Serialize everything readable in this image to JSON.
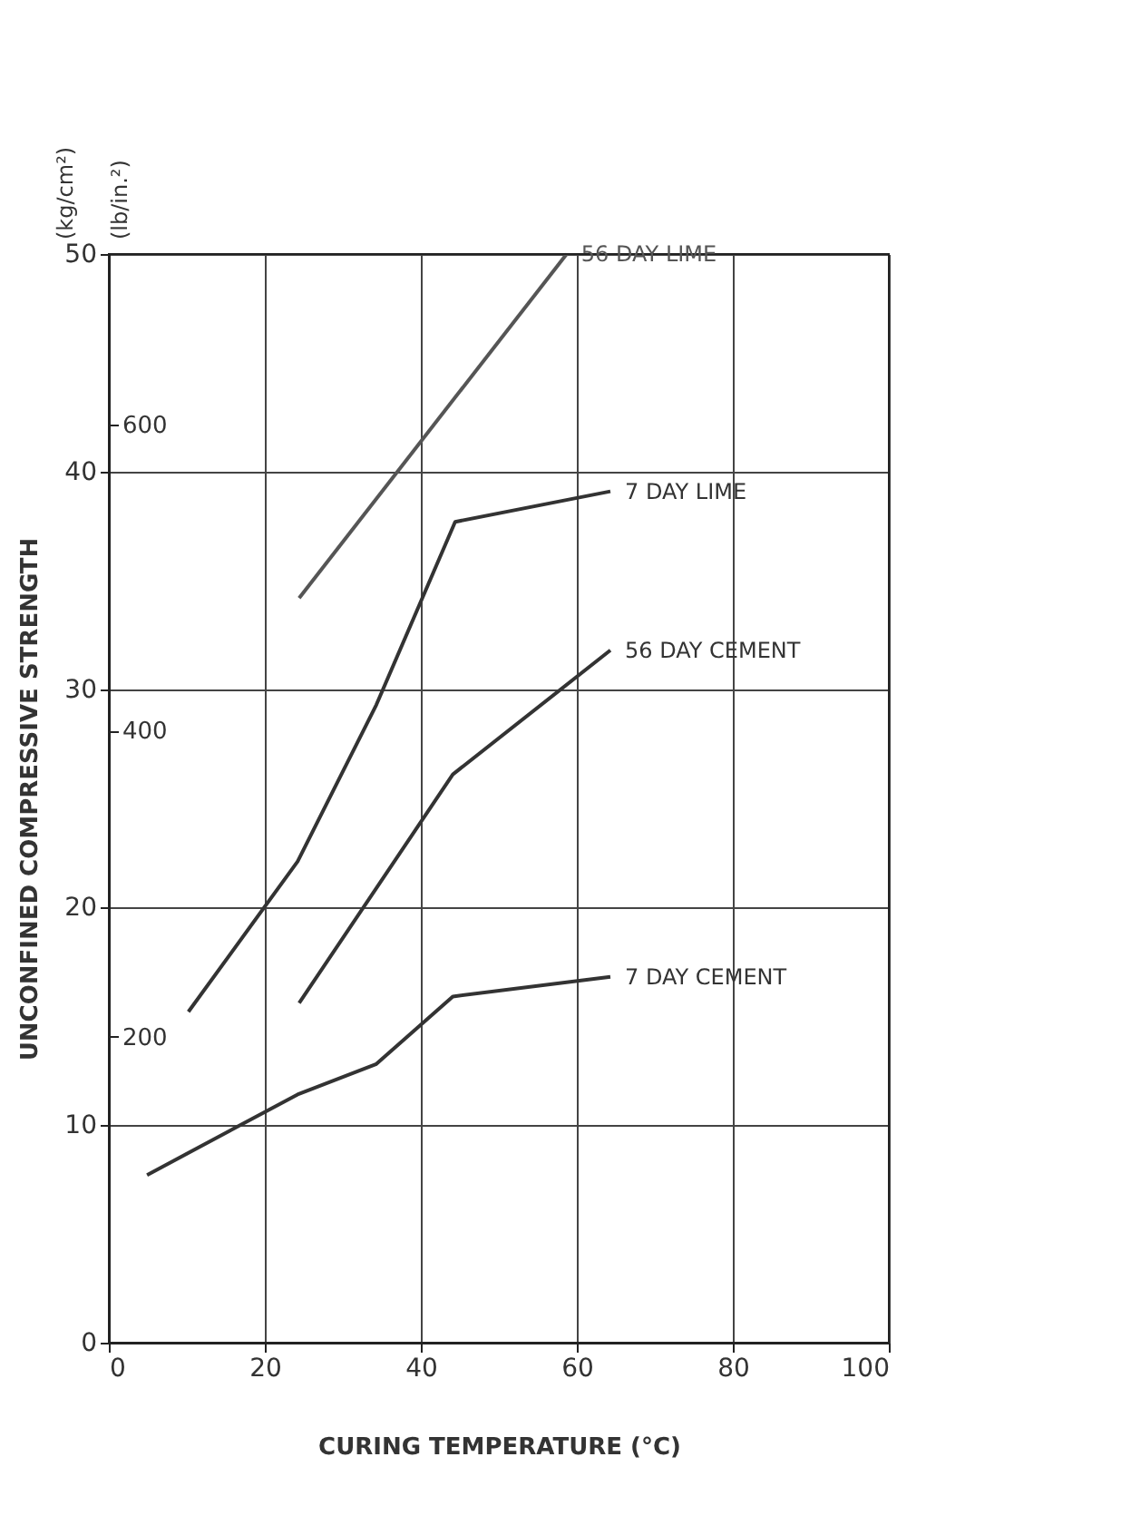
{
  "chart_data": {
    "type": "line",
    "xlabel": "CURING TEMPERATURE (°C)",
    "ylabel": "UNCONFINED COMPRESSIVE STRENGTH",
    "y2label": "(lb/in.²)",
    "annotations": [
      "(kg/cm²)"
    ],
    "series": [
      {
        "name": "56 DAY LIME",
        "color": "#555555",
        "x": [
          24.4,
          58.7
        ],
        "values": [
          34.2,
          50
        ]
      },
      {
        "name": "7 DAY LIME",
        "color": "#333333",
        "x": [
          10.2,
          24.2,
          34.3,
          44.4,
          64.3
        ],
        "values": [
          15.2,
          22.1,
          29.3,
          37.7,
          39.1
        ]
      },
      {
        "name": "56 DAY CEMENT",
        "color": "#333333",
        "x": [
          24.4,
          44.1,
          64.3
        ],
        "values": [
          15.6,
          26.1,
          31.8
        ]
      },
      {
        "name": "7 DAY CEMENT",
        "color": "#333333",
        "x": [
          4.9,
          24.2,
          34.3,
          44.1,
          64.3
        ],
        "values": [
          7.7,
          11.4,
          12.8,
          15.9,
          16.8
        ]
      }
    ],
    "xlim": [
      0,
      100
    ],
    "xticks": [
      0,
      20,
      40,
      60,
      80,
      100
    ],
    "ylim": [
      0,
      50
    ],
    "yticks": [
      0,
      10,
      20,
      30,
      40,
      50
    ],
    "y2lim": [
      0,
      711.2
    ],
    "y2ticks": [
      200,
      400,
      600
    ],
    "grid": true,
    "legend": false,
    "marker": "none",
    "line_style": "solid"
  }
}
